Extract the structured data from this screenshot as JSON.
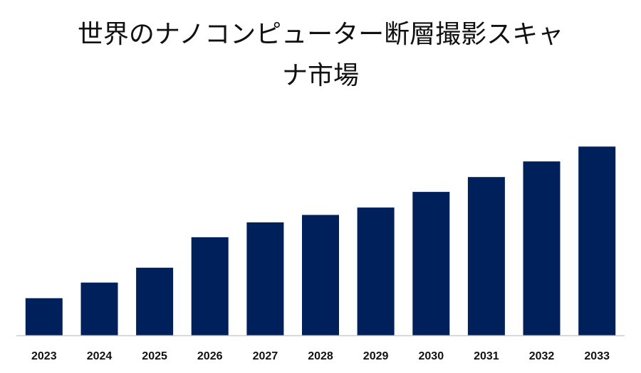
{
  "title_line1": "世界のナノコンピューター断層撮影スキャ",
  "title_line2": "ナ市場",
  "chart_data": {
    "type": "bar",
    "title": "世界のナノコンピューター断層撮影スキャナ市場",
    "categories": [
      "2023",
      "2024",
      "2025",
      "2026",
      "2027",
      "2028",
      "2029",
      "2030",
      "2031",
      "2032",
      "2033"
    ],
    "values": [
      50,
      71,
      91,
      132,
      152,
      162,
      172,
      193,
      213,
      234,
      254
    ],
    "ylim": [
      0,
      260
    ],
    "grid": false,
    "legend": "none",
    "colors": {
      "bar": "#00205b",
      "axis": "#cccccc"
    }
  }
}
